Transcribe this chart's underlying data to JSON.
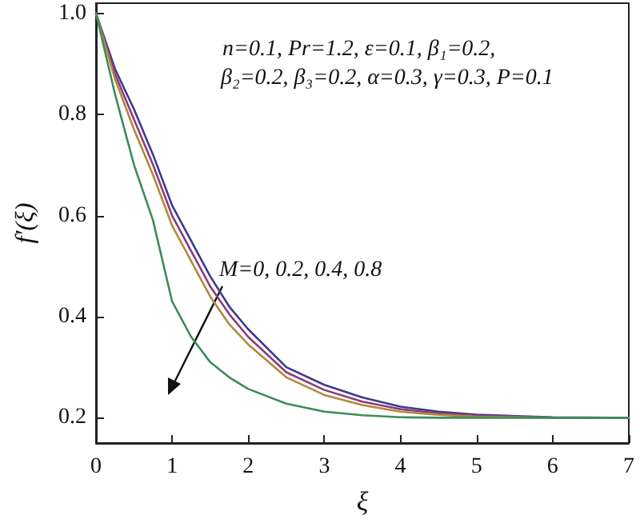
{
  "chart_data": {
    "type": "line",
    "x": [
      0,
      0.25,
      0.5,
      0.75,
      1,
      1.25,
      1.5,
      1.75,
      2,
      2.5,
      3,
      3.5,
      4,
      4.5,
      5,
      6,
      7
    ],
    "series": [
      {
        "color": "#3b3b8e",
        "values": [
          1.0,
          0.89,
          0.81,
          0.72,
          0.62,
          0.55,
          0.48,
          0.42,
          0.375,
          0.3,
          0.265,
          0.24,
          0.222,
          0.212,
          0.206,
          0.201,
          0.2
        ]
      },
      {
        "color": "#8e3b78",
        "values": [
          1.0,
          0.88,
          0.79,
          0.7,
          0.6,
          0.53,
          0.46,
          0.405,
          0.36,
          0.29,
          0.255,
          0.232,
          0.217,
          0.209,
          0.204,
          0.2,
          0.2
        ]
      },
      {
        "color": "#b08a3c",
        "values": [
          1.0,
          0.87,
          0.77,
          0.68,
          0.58,
          0.51,
          0.44,
          0.385,
          0.345,
          0.28,
          0.245,
          0.225,
          0.212,
          0.206,
          0.202,
          0.2,
          0.2
        ]
      },
      {
        "color": "#3c8c5c",
        "values": [
          1.0,
          0.84,
          0.7,
          0.59,
          0.43,
          0.36,
          0.31,
          0.28,
          0.257,
          0.228,
          0.212,
          0.205,
          0.201,
          0.2,
          0.2,
          0.2,
          0.2
        ]
      }
    ],
    "xlabel": "ξ",
    "ylabel": "f′(ξ)",
    "xlim": [
      0,
      7
    ],
    "xticks": [
      0,
      1,
      2,
      3,
      4,
      5,
      6,
      7
    ],
    "ylim": [
      0.15,
      1.02
    ],
    "yticks": [
      {
        "value": 0.2,
        "label": "0.2"
      },
      {
        "value": 0.4,
        "label": "0.4"
      },
      {
        "value": 0.6,
        "label": "0.6"
      },
      {
        "value": 0.8,
        "label": "0.8"
      },
      {
        "value": 1.0,
        "label": "1.0"
      }
    ],
    "annotations": [
      "n=0.1, Pr=1.2, ε=0.1, β₁=0.2,",
      "β₂=0.2, β₃=0.2, α=0.3, γ=0.3, P=0.1",
      "M=0, 0.2, 0.4, 0.8"
    ],
    "grid": false,
    "marker": "none",
    "line_style": "solid"
  }
}
